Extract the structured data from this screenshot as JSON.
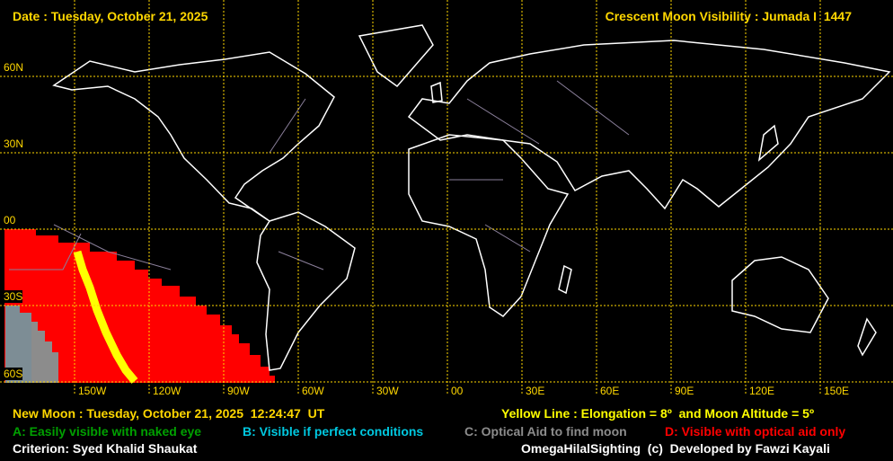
{
  "header": {
    "date": "Date : Tuesday, October 21, 2025",
    "title": "Crescent Moon Visibility : Jumada I  1447"
  },
  "map": {
    "lat_labels": [
      "60N",
      "30N",
      "00",
      "30S",
      "60S"
    ],
    "lon_labels": [
      "150W",
      "120W",
      "90W",
      "60W",
      "30W",
      "00",
      "30E",
      "60E",
      "90E",
      "120E",
      "150E"
    ],
    "colors": {
      "grid": "#ffd700",
      "coast": "#ffffff",
      "borders": "#8a7f9a",
      "zone_a": "#00a000",
      "zone_b": "#00c8e0",
      "zone_c": "#8c8c8c",
      "zone_d": "#ff0000",
      "yellow_line": "#ffff00"
    }
  },
  "footer": {
    "new_moon": "New Moon : Tuesday, October 21, 2025  12:24:47  UT",
    "yellow_line": "Yellow Line : Elongation = 8º  and Moon Altitude = 5º",
    "legend": {
      "a": "A: Easily visible with naked eye",
      "b": "B: Visible if perfect conditions",
      "c": "C: Optical Aid to find moon",
      "d": "D: Visible with optical aid only"
    },
    "criterion": "Criterion: Syed Khalid Shaukat",
    "credit": "OmegaHilalSighting  (c)  Developed by Fawzi Kayali"
  }
}
